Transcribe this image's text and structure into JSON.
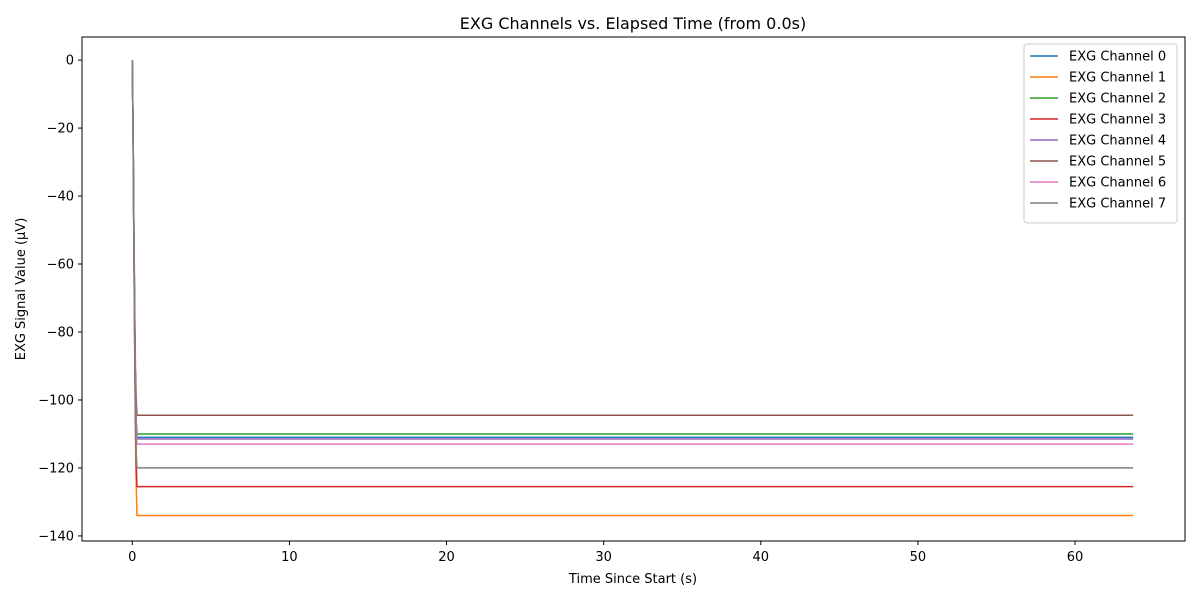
{
  "chart_data": {
    "type": "line",
    "title": "EXG Channels vs. Elapsed Time (from 0.0s)",
    "xlabel": "Time Since Start (s)",
    "ylabel": "EXG Signal Value (µV)",
    "xlim": [
      -3.2,
      67.0
    ],
    "ylim": [
      -141.5,
      6.8
    ],
    "xticks": [
      0,
      10,
      20,
      30,
      40,
      50,
      60
    ],
    "yticks": [
      0,
      -20,
      -40,
      -60,
      -80,
      -100,
      -120,
      -140
    ],
    "grid": false,
    "legend_position": "top-right",
    "series": [
      {
        "name": "EXG Channel 0",
        "color": "#1f77b4",
        "x": [
          0,
          0.05,
          0.1,
          0.15,
          0.2,
          0.25,
          0.3,
          63.7
        ],
        "values": [
          0,
          -20,
          -50,
          -75,
          -95,
          -107,
          -111,
          -111
        ]
      },
      {
        "name": "EXG Channel 1",
        "color": "#ff7f0e",
        "x": [
          0,
          0.05,
          0.1,
          0.15,
          0.2,
          0.25,
          0.3,
          63.7
        ],
        "values": [
          0,
          -22,
          -55,
          -85,
          -110,
          -125,
          -134,
          -134
        ]
      },
      {
        "name": "EXG Channel 2",
        "color": "#2ca02c",
        "x": [
          0,
          0.05,
          0.1,
          0.15,
          0.2,
          0.25,
          0.3,
          63.7
        ],
        "values": [
          0,
          -20,
          -50,
          -75,
          -95,
          -106,
          -110,
          -110
        ]
      },
      {
        "name": "EXG Channel 3",
        "color": "#d62728",
        "x": [
          0,
          0.05,
          0.1,
          0.15,
          0.2,
          0.25,
          0.3,
          63.7
        ],
        "values": [
          0,
          -21,
          -53,
          -82,
          -105,
          -119,
          -125.5,
          -125.5
        ]
      },
      {
        "name": "EXG Channel 4",
        "color": "#9467bd",
        "x": [
          0,
          0.05,
          0.1,
          0.15,
          0.2,
          0.25,
          0.3,
          63.7
        ],
        "values": [
          0,
          -20,
          -50,
          -75,
          -95,
          -107,
          -111.5,
          -111.5
        ]
      },
      {
        "name": "EXG Channel 5",
        "color": "#8c564b",
        "x": [
          0,
          0.05,
          0.1,
          0.15,
          0.2,
          0.25,
          0.3,
          63.7
        ],
        "values": [
          0,
          -19,
          -47,
          -70,
          -90,
          -100,
          -104.5,
          -104.5
        ]
      },
      {
        "name": "EXG Channel 6",
        "color": "#e377c2",
        "x": [
          0,
          0.05,
          0.1,
          0.15,
          0.2,
          0.25,
          0.3,
          63.7
        ],
        "values": [
          0,
          -20,
          -51,
          -77,
          -97,
          -109,
          -113,
          -113
        ]
      },
      {
        "name": "EXG Channel 7",
        "color": "#7f7f7f",
        "x": [
          0,
          0.05,
          0.1,
          0.15,
          0.2,
          0.25,
          0.3,
          63.7
        ],
        "values": [
          0,
          -21,
          -52,
          -80,
          -103,
          -116,
          -120,
          -120
        ]
      }
    ]
  }
}
